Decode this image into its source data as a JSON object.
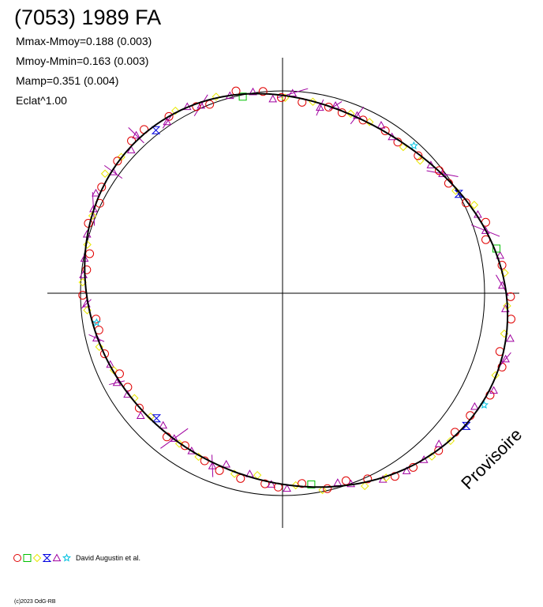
{
  "chart_data": {
    "type": "polar-lightcurve",
    "title": "(7053) 1989 FA",
    "stats": [
      "Mmax-Mmoy=0.188 (0.003)",
      "Mmoy-Mmin=0.163 (0.003)",
      "Mamp=0.351 (0.004)",
      "Eclat^1.00"
    ],
    "mmax_minus_mmoy": 0.188,
    "mmoy_minus_mmin": 0.163,
    "amplitude": 0.351,
    "watermark": "Provisoire",
    "legend_label": "David Augustin et al.",
    "legend_markers": [
      "circle",
      "square",
      "diamond",
      "hourglass",
      "triangle",
      "star"
    ],
    "series_colors": {
      "circle": "#e00000",
      "square": "#00c000",
      "diamond": "#e8e800",
      "hourglass": "#0000e0",
      "triangle": "#a000a0",
      "star": "#00c0e0"
    },
    "copyright": "(c)2023 OdG-RB"
  }
}
